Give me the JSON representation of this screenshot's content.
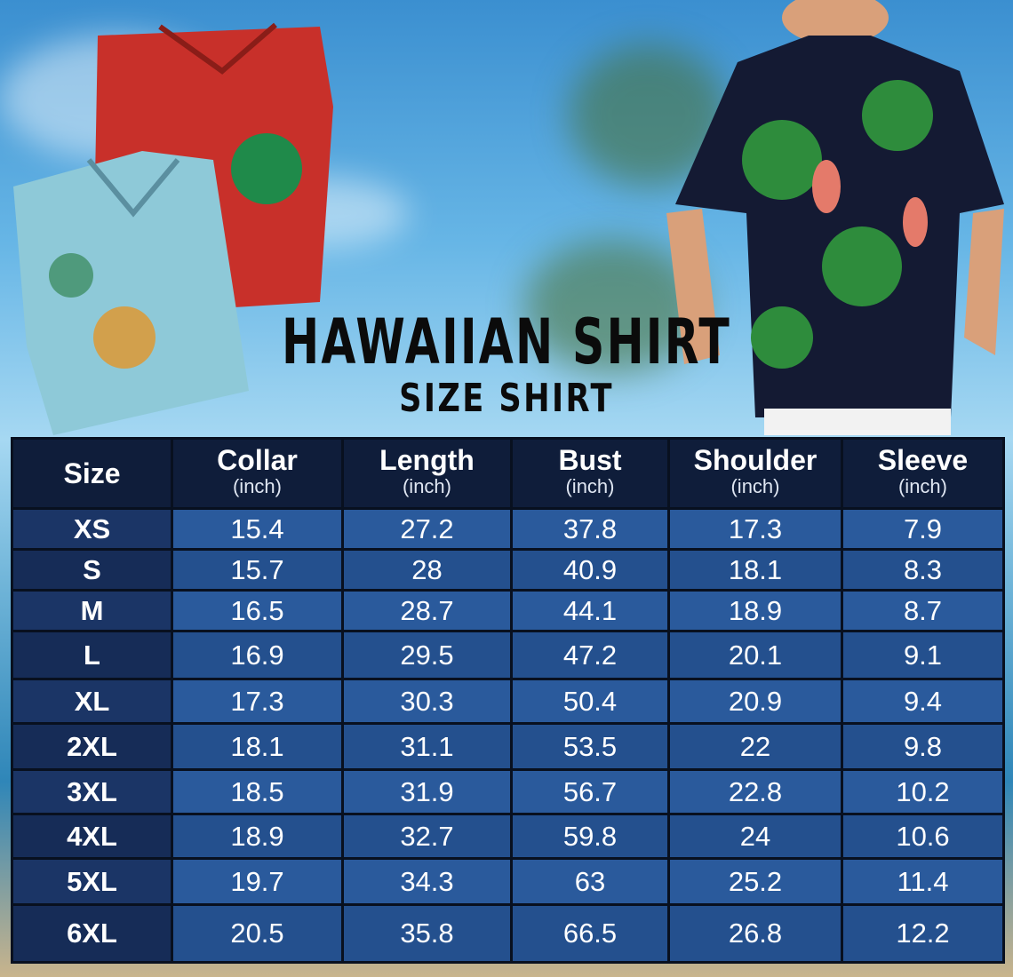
{
  "title": "HAWAIIAN SHIRT",
  "subtitle": "SIZE SHIRT",
  "headers": [
    {
      "label": "Size",
      "unit": ""
    },
    {
      "label": "Collar",
      "unit": "(inch)"
    },
    {
      "label": "Length",
      "unit": "(inch)"
    },
    {
      "label": "Bust",
      "unit": "(inch)"
    },
    {
      "label": "Shoulder",
      "unit": "(inch)"
    },
    {
      "label": "Sleeve",
      "unit": "(inch)"
    }
  ],
  "rows": [
    [
      "XS",
      "15.4",
      "27.2",
      "37.8",
      "17.3",
      "7.9"
    ],
    [
      "S",
      "15.7",
      "28",
      "40.9",
      "18.1",
      "8.3"
    ],
    [
      "M",
      "16.5",
      "28.7",
      "44.1",
      "18.9",
      "8.7"
    ],
    [
      "L",
      "16.9",
      "29.5",
      "47.2",
      "20.1",
      "9.1"
    ],
    [
      "XL",
      "17.3",
      "30.3",
      "50.4",
      "20.9",
      "9.4"
    ],
    [
      "2XL",
      "18.1",
      "31.1",
      "53.5",
      "22",
      "9.8"
    ],
    [
      "3XL",
      "18.5",
      "31.9",
      "56.7",
      "22.8",
      "10.2"
    ],
    [
      "4XL",
      "18.9",
      "32.7",
      "59.8",
      "24",
      "10.6"
    ],
    [
      "5XL",
      "19.7",
      "34.3",
      "63",
      "25.2",
      "11.4"
    ],
    [
      "6XL",
      "20.5",
      "35.8",
      "66.5",
      "26.8",
      "12.2"
    ]
  ],
  "colors": {
    "header": "#0f1d3a",
    "size_cell": "#1b3566",
    "data_cell": "#2a5a9c"
  }
}
